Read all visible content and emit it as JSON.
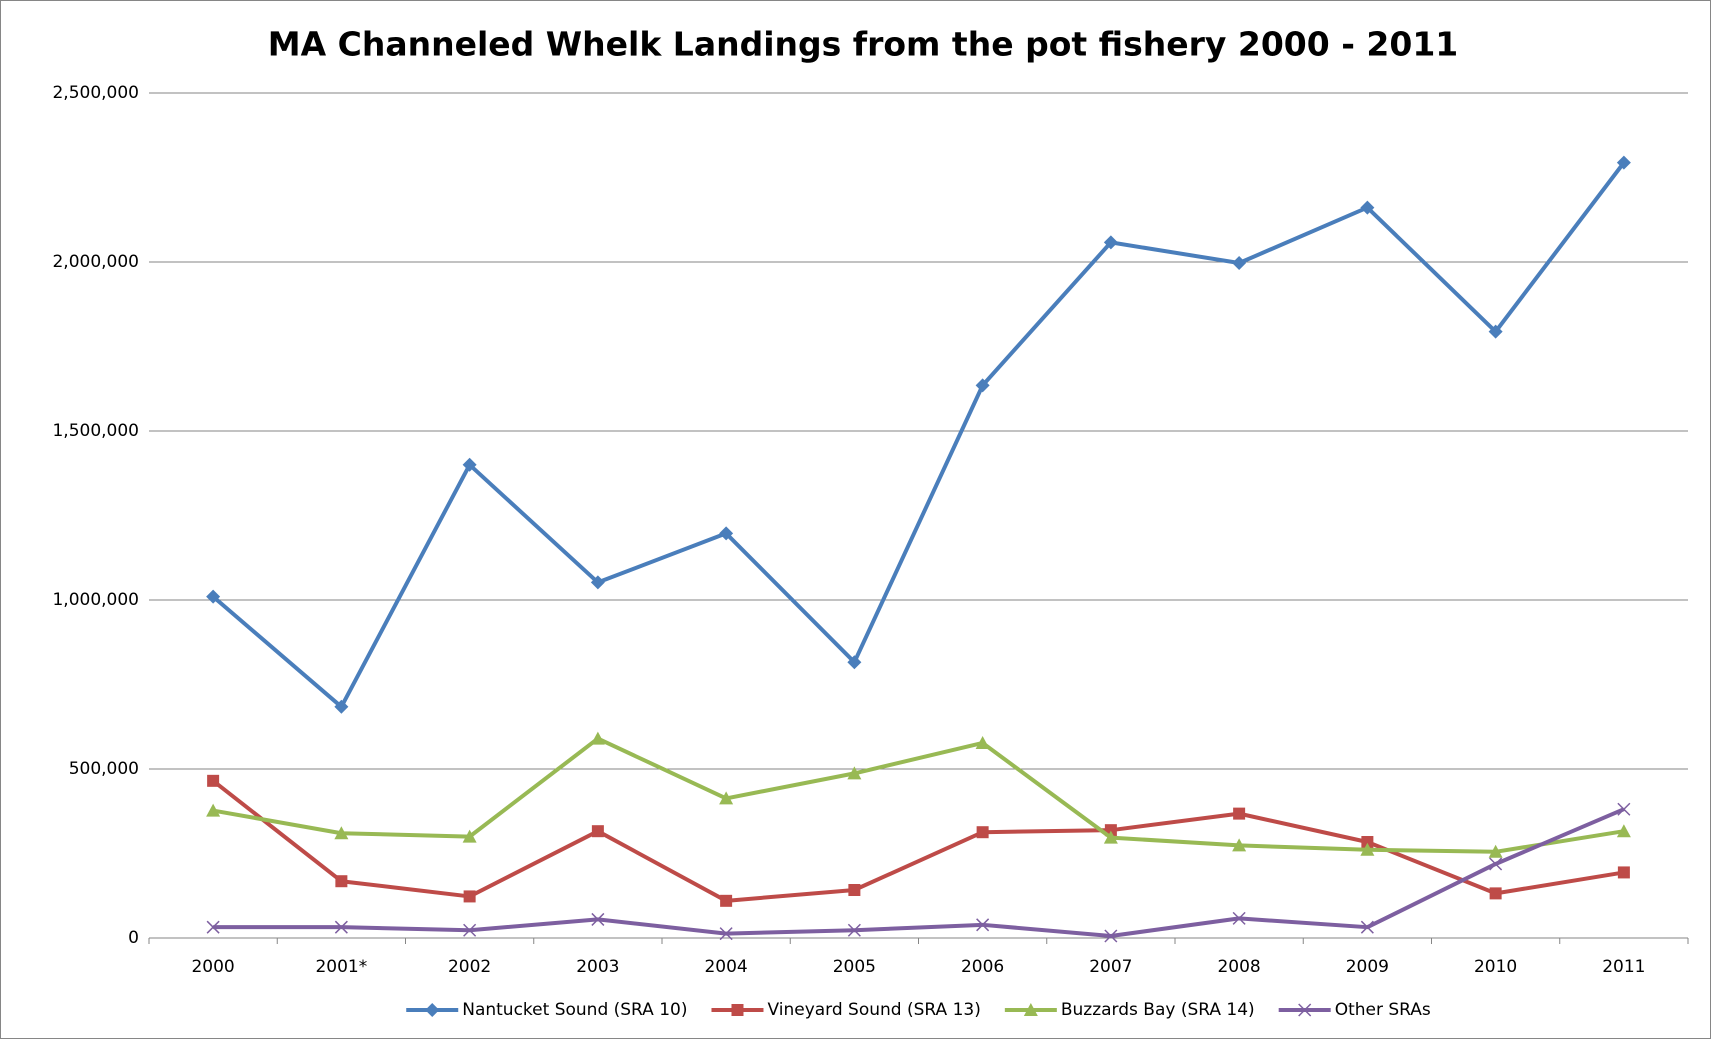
{
  "chart_data": {
    "type": "line",
    "title": "MA Channeled Whelk Landings from the pot fishery 2000 - 2011",
    "categories": [
      "2000",
      "2001*",
      "2002",
      "2003",
      "2004",
      "2005",
      "2006",
      "2007",
      "2008",
      "2009",
      "2010",
      "2011"
    ],
    "series": [
      {
        "name": "Nantucket Sound (SRA 10)",
        "color": "#4a7ebb",
        "marker": "diamond",
        "values": [
          1010000,
          684000,
          1400000,
          1052000,
          1197000,
          816000,
          1635000,
          2058000,
          1997000,
          2161000,
          1794000,
          2294000
        ]
      },
      {
        "name": "Vineyard Sound (SRA 13)",
        "color": "#be4b48",
        "marker": "square",
        "values": [
          465000,
          168000,
          123000,
          316000,
          110000,
          142000,
          313000,
          319000,
          368000,
          284000,
          132000,
          194000
        ]
      },
      {
        "name": "Buzzards Bay (SRA 14)",
        "color": "#98b954",
        "marker": "triangle",
        "values": [
          377000,
          310000,
          300000,
          590000,
          413000,
          487000,
          577000,
          297000,
          274000,
          261000,
          255000,
          316000
        ]
      },
      {
        "name": "Other SRAs",
        "color": "#7d5fa0",
        "marker": "x",
        "values": [
          32000,
          32000,
          23000,
          55000,
          13000,
          23000,
          39000,
          6000,
          58000,
          32000,
          219000,
          381000
        ]
      }
    ],
    "ylim": [
      0,
      2500000
    ],
    "yticks": [
      0,
      {
        "value": 500000,
        "label": "500,000"
      },
      {
        "value": 1000000,
        "label": "1,000,000"
      },
      {
        "value": 1500000,
        "label": "1,500,000"
      },
      {
        "value": 2000000,
        "label": "2,000,000"
      },
      {
        "value": 2500000,
        "label": "2,500,000"
      }
    ],
    "grid": true,
    "legend": "bottom"
  }
}
